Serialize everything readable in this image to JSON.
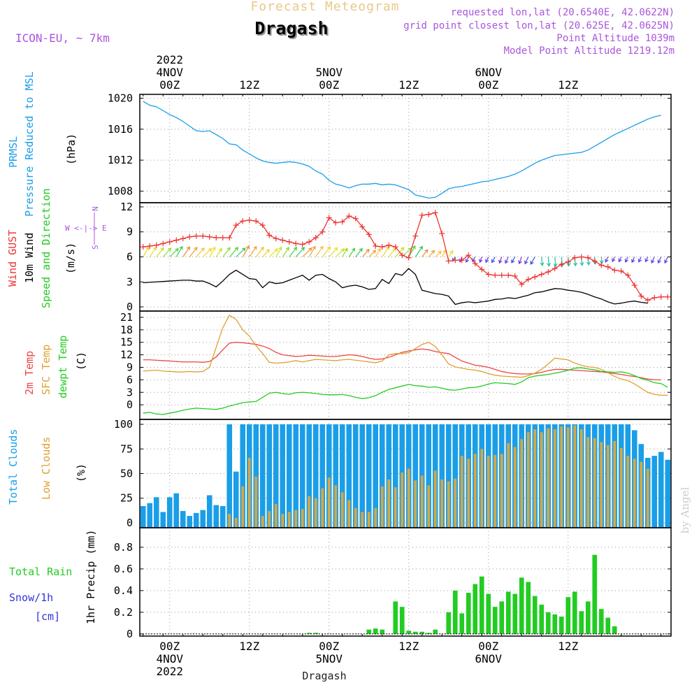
{
  "header": {
    "app_title": "Forecast Meteogram",
    "location": "Dragash",
    "model": "ICON-EU, ~ 7km",
    "requested": "requested lon,lat (20.6540E, 42.0622N)",
    "grid_point": "grid point closest lon,lat (20.625E, 42.0625N)",
    "point_altitude": "Point Altitude 1039m",
    "model_altitude": "Model Point Altitude 1219.12m",
    "footer_location": "Dragash",
    "watermark": "by Angel"
  },
  "colors": {
    "pressure": "#1a9ee8",
    "gust": "#ee3333",
    "wind": "#000000",
    "temp2m": "#ee4444",
    "sfc": "#e0a030",
    "dewpt": "#22cc22",
    "total_clouds": "#1a9ee8",
    "low_clouds": "#d4a845",
    "rain": "#22cc22",
    "snow": "#3333dd",
    "title_gold": "#e8c98a",
    "purple": "#aa55dd"
  },
  "time_axis": {
    "start": "2022-11-03 20Z",
    "step_hours": 1,
    "top_labels": [
      {
        "hour": 4,
        "lines": [
          "2022",
          "4NOV",
          "00Z"
        ]
      },
      {
        "hour": 16,
        "lines": [
          "12Z"
        ]
      },
      {
        "hour": 28,
        "lines": [
          "5NOV",
          "00Z"
        ]
      },
      {
        "hour": 40,
        "lines": [
          "12Z"
        ]
      },
      {
        "hour": 52,
        "lines": [
          "6NOV",
          "00Z"
        ]
      },
      {
        "hour": 64,
        "lines": [
          "12Z"
        ]
      }
    ],
    "bottom_labels": [
      {
        "hour": 4,
        "lines": [
          "00Z",
          "4NOV",
          "2022"
        ]
      },
      {
        "hour": 16,
        "lines": [
          "12Z"
        ]
      },
      {
        "hour": 28,
        "lines": [
          "00Z",
          "5NOV"
        ]
      },
      {
        "hour": 40,
        "lines": [
          "12Z"
        ]
      },
      {
        "hour": 52,
        "lines": [
          "00Z",
          "6NOV"
        ]
      },
      {
        "hour": 64,
        "lines": [
          "12Z"
        ]
      }
    ]
  },
  "panels": {
    "pressure": {
      "labels": [
        "PRMSL",
        "Pressure Reduced to MSL",
        "(hPa)"
      ]
    },
    "wind": {
      "labels": [
        "Wind GUST",
        "10m Wind",
        "Speed and Direction",
        "(m/s)"
      ],
      "compass": [
        "N",
        "W <-|-> E",
        "S"
      ]
    },
    "temp": {
      "labels": [
        "2m Temp",
        "SFC Temp",
        "dewpt Temp",
        "(C)"
      ]
    },
    "clouds": {
      "labels": [
        "Total Clouds",
        "Low Clouds",
        "(%)"
      ]
    },
    "precip": {
      "labels": [
        "Total Rain",
        "Snow/1h",
        "[cm]",
        "1hr Precip (mm)"
      ]
    }
  },
  "chart_data": [
    {
      "type": "line",
      "title": "PRMSL Pressure Reduced to MSL",
      "ylabel": "(hPa)",
      "ylim": [
        1006.5,
        1020.5
      ],
      "yticks": [
        1008,
        1012,
        1016,
        1020
      ],
      "x_unit": "hours since 2022-11-03 20Z",
      "series": [
        {
          "name": "PRMSL",
          "values": [
            1019.6,
            1019.1,
            1018.9,
            1018.4,
            1017.9,
            1017.5,
            1017.0,
            1016.4,
            1015.8,
            1015.7,
            1015.8,
            1015.3,
            1014.8,
            1014.1,
            1014.0,
            1013.3,
            1012.8,
            1012.3,
            1011.9,
            1011.7,
            1011.6,
            1011.7,
            1011.8,
            1011.7,
            1011.5,
            1011.2,
            1010.6,
            1010.2,
            1009.4,
            1008.9,
            1008.7,
            1008.4,
            1008.7,
            1008.9,
            1008.9,
            1009.0,
            1008.8,
            1008.9,
            1008.8,
            1008.5,
            1008.2,
            1007.5,
            1007.3,
            1007.1,
            1007.2,
            1007.7,
            1008.3,
            1008.5,
            1008.6,
            1008.8,
            1009.0,
            1009.2,
            1009.3,
            1009.5,
            1009.7,
            1009.9,
            1010.2,
            1010.6,
            1011.1,
            1011.6,
            1012.0,
            1012.3,
            1012.6,
            1012.7,
            1012.8,
            1012.9,
            1013.0,
            1013.3,
            1013.8,
            1014.3,
            1014.8,
            1015.3,
            1015.7,
            1016.1,
            1016.5,
            1016.9,
            1017.3,
            1017.6,
            1017.8
          ]
        }
      ]
    },
    {
      "type": "line",
      "title": "Wind GUST / 10m Wind Speed and Direction",
      "ylabel": "(m/s)",
      "ylim": [
        -0.5,
        12.5
      ],
      "yticks": [
        0,
        3,
        6,
        9,
        12
      ],
      "x_unit": "hours since 2022-11-03 20Z",
      "series": [
        {
          "name": "Wind GUST",
          "values": [
            7.2,
            7.3,
            7.4,
            7.6,
            7.8,
            8.0,
            8.2,
            8.4,
            8.5,
            8.5,
            8.4,
            8.3,
            8.3,
            8.3,
            9.8,
            10.3,
            10.4,
            10.3,
            9.8,
            8.6,
            8.2,
            8.0,
            7.8,
            7.6,
            7.5,
            7.8,
            8.3,
            9.0,
            10.7,
            10.1,
            10.2,
            10.9,
            10.6,
            9.6,
            8.7,
            7.3,
            7.2,
            7.4,
            7.2,
            6.2,
            5.9,
            8.5,
            11.0,
            11.1,
            11.3,
            8.8,
            5.5,
            5.6,
            5.6,
            6.2,
            5.2,
            4.5,
            3.9,
            3.8,
            3.8,
            3.8,
            3.7,
            2.7,
            3.3,
            3.6,
            3.9,
            4.2,
            4.6,
            5.1,
            5.4,
            5.9,
            6.0,
            5.9,
            5.5,
            5.0,
            4.8,
            4.4,
            4.3,
            3.8,
            2.6,
            1.3,
            0.8,
            1.1,
            1.2,
            1.2
          ]
        },
        {
          "name": "10m Wind",
          "values": [
            2.9,
            2.95,
            3.0,
            3.05,
            3.1,
            3.15,
            3.2,
            3.2,
            3.1,
            3.1,
            2.8,
            2.4,
            3.1,
            3.9,
            4.4,
            3.9,
            3.4,
            3.3,
            2.3,
            3.0,
            2.8,
            2.9,
            3.2,
            3.5,
            3.8,
            3.2,
            3.8,
            3.9,
            3.4,
            3.0,
            2.3,
            2.5,
            2.6,
            2.4,
            2.1,
            2.2,
            3.3,
            2.8,
            4.0,
            3.8,
            4.6,
            3.9,
            2.0,
            1.8,
            1.6,
            1.5,
            1.3,
            0.3,
            0.5,
            0.6,
            0.5,
            0.6,
            0.7,
            0.9,
            0.95,
            1.1,
            1.0,
            1.2,
            1.4,
            1.7,
            1.8,
            2.0,
            2.2,
            2.15,
            2.0,
            1.9,
            1.75,
            1.5,
            1.2,
            0.95,
            0.6,
            0.35,
            0.45,
            0.6,
            0.7,
            0.55,
            0.45
          ]
        }
      ],
      "direction_arrows": "colored arrows along 6 m/s line (NNE to SW)"
    },
    {
      "type": "line",
      "title": "2m Temp / SFC Temp / dewpt Temp",
      "ylabel": "(C)",
      "ylim": [
        -3.5,
        22.5
      ],
      "yticks": [
        0,
        3,
        6,
        9,
        12,
        15,
        18,
        21
      ],
      "x_unit": "hours since 2022-11-03 20Z",
      "series": [
        {
          "name": "2m Temp",
          "values": [
            10.8,
            10.8,
            10.7,
            10.6,
            10.5,
            10.4,
            10.3,
            10.3,
            10.3,
            10.2,
            10.4,
            11.5,
            13.2,
            14.8,
            15.0,
            14.9,
            14.7,
            14.5,
            14.1,
            13.5,
            12.6,
            12.0,
            11.8,
            11.6,
            11.7,
            11.9,
            11.8,
            11.7,
            11.6,
            11.6,
            11.8,
            12.0,
            11.9,
            11.6,
            11.2,
            10.9,
            11.0,
            11.4,
            12.0,
            12.6,
            12.9,
            13.2,
            13.4,
            13.2,
            12.8,
            12.5,
            12.3,
            11.4,
            10.5,
            10.0,
            9.5,
            9.3,
            9.0,
            8.5,
            8.0,
            7.7,
            7.5,
            7.4,
            7.4,
            7.5,
            7.8,
            8.2,
            8.5,
            8.5,
            8.4,
            8.3,
            8.2,
            8.1,
            8.0,
            7.9,
            7.7,
            7.5,
            7.3,
            7.0,
            6.8,
            6.5,
            6.2,
            6.0,
            6.0
          ]
        },
        {
          "name": "SFC Temp",
          "values": [
            8.1,
            8.2,
            8.3,
            8.1,
            8.0,
            7.9,
            7.9,
            8.0,
            7.9,
            8.0,
            9.0,
            13.8,
            18.5,
            21.5,
            20.5,
            18.0,
            16.5,
            14.2,
            12.3,
            10.2,
            10.0,
            10.1,
            10.3,
            10.6,
            10.3,
            10.6,
            10.9,
            10.8,
            10.7,
            10.6,
            10.8,
            10.9,
            10.7,
            10.5,
            10.3,
            10.1,
            10.5,
            12.0,
            12.3,
            12.3,
            12.5,
            13.5,
            14.5,
            15.0,
            14.0,
            12.0,
            9.8,
            9.1,
            8.8,
            8.5,
            8.3,
            8.0,
            7.5,
            7.1,
            6.9,
            6.8,
            6.7,
            6.6,
            7.0,
            7.6,
            8.5,
            9.8,
            11.2,
            11.0,
            10.8,
            10.0,
            9.5,
            9.1,
            9.0,
            8.5,
            7.7,
            6.8,
            6.2,
            5.8,
            5.0,
            4.0,
            3.0,
            2.5,
            2.3,
            2.3
          ]
        },
        {
          "name": "dewpt Temp",
          "values": [
            -2.0,
            -1.8,
            -2.2,
            -2.3,
            -2.0,
            -1.7,
            -1.3,
            -1.0,
            -0.8,
            -0.9,
            -1.0,
            -1.1,
            -0.8,
            -0.3,
            0.1,
            0.5,
            0.7,
            0.8,
            1.8,
            2.8,
            3.0,
            2.7,
            2.5,
            2.9,
            3.0,
            2.9,
            2.7,
            2.5,
            2.4,
            2.4,
            2.5,
            2.2,
            1.8,
            1.5,
            1.7,
            2.2,
            3.0,
            3.7,
            4.1,
            4.5,
            4.9,
            4.6,
            4.5,
            4.2,
            4.3,
            4.0,
            3.6,
            3.5,
            3.8,
            4.1,
            4.2,
            4.5,
            5.0,
            5.3,
            5.2,
            5.1,
            4.9,
            5.5,
            6.5,
            6.9,
            7.1,
            7.3,
            7.6,
            7.9,
            8.3,
            8.8,
            8.9,
            8.6,
            8.4,
            8.0,
            7.9,
            7.8,
            7.9,
            7.6,
            7.0,
            6.3,
            5.9,
            5.3,
            5.1,
            4.2
          ]
        }
      ]
    },
    {
      "type": "bar",
      "title": "Total Clouds / Low Clouds",
      "ylabel": "(%)",
      "ylim": [
        -5,
        105
      ],
      "yticks": [
        0,
        25,
        50,
        75,
        100
      ],
      "x_unit": "hours since 2022-11-03 20Z",
      "series": [
        {
          "name": "Total Clouds",
          "values": [
            17,
            20,
            26,
            11,
            26,
            30,
            12,
            7,
            10,
            13,
            28,
            18,
            17,
            100,
            52,
            100,
            100,
            100,
            100,
            100,
            100,
            100,
            100,
            100,
            100,
            100,
            100,
            100,
            100,
            100,
            100,
            100,
            100,
            100,
            100,
            100,
            100,
            100,
            100,
            100,
            100,
            100,
            100,
            100,
            100,
            100,
            100,
            100,
            100,
            100,
            100,
            100,
            100,
            100,
            100,
            100,
            100,
            100,
            100,
            100,
            100,
            100,
            100,
            100,
            100,
            100,
            100,
            100,
            100,
            100,
            100,
            100,
            100,
            100,
            94,
            80,
            66,
            68,
            72,
            64
          ]
        },
        {
          "name": "Low Clouds",
          "values": [
            0,
            0,
            0,
            0,
            0,
            0,
            0,
            0,
            0,
            0,
            0,
            0,
            0,
            9,
            5,
            37,
            66,
            47,
            7,
            12,
            19,
            9,
            11,
            13,
            14,
            27,
            25,
            35,
            46,
            38,
            31,
            23,
            15,
            11,
            11,
            15,
            37,
            44,
            36,
            51,
            55,
            43,
            48,
            38,
            53,
            44,
            42,
            45,
            68,
            65,
            70,
            75,
            68,
            69,
            70,
            81,
            77,
            85,
            92,
            95,
            92,
            96,
            95,
            98,
            97,
            99,
            95,
            87,
            86,
            82,
            79,
            83,
            76,
            68,
            65,
            62,
            55
          ]
        }
      ]
    },
    {
      "type": "bar",
      "title": "Total Rain / Snow/1h [cm]",
      "ylabel": "1hr Precip (mm)",
      "ylim": [
        -0.02,
        0.98
      ],
      "yticks": [
        0,
        0.2,
        0.4,
        0.6,
        0.8
      ],
      "x_unit": "hours since 2022-11-03 20Z",
      "series": [
        {
          "name": "Total Rain",
          "values": [
            0,
            0,
            0,
            0,
            0,
            0,
            0,
            0,
            0,
            0,
            0,
            0,
            0,
            0,
            0,
            0,
            0,
            0,
            0,
            0,
            0,
            0,
            0,
            0,
            0,
            0.01,
            0.01,
            0,
            0,
            0,
            0,
            0,
            0,
            0,
            0.04,
            0.05,
            0.04,
            0,
            0.3,
            0.25,
            0.03,
            0.02,
            0.02,
            0.01,
            0.04,
            0,
            0.2,
            0.4,
            0.19,
            0.38,
            0.46,
            0.53,
            0.37,
            0.25,
            0.3,
            0.39,
            0.37,
            0.52,
            0.48,
            0.35,
            0.27,
            0.2,
            0.18,
            0.16,
            0.34,
            0.39,
            0.21,
            0.3,
            0.73,
            0.23,
            0.15,
            0.07,
            0,
            0,
            0,
            0,
            0,
            0,
            0,
            0
          ]
        },
        {
          "name": "Snow/1h",
          "values": []
        }
      ]
    }
  ]
}
